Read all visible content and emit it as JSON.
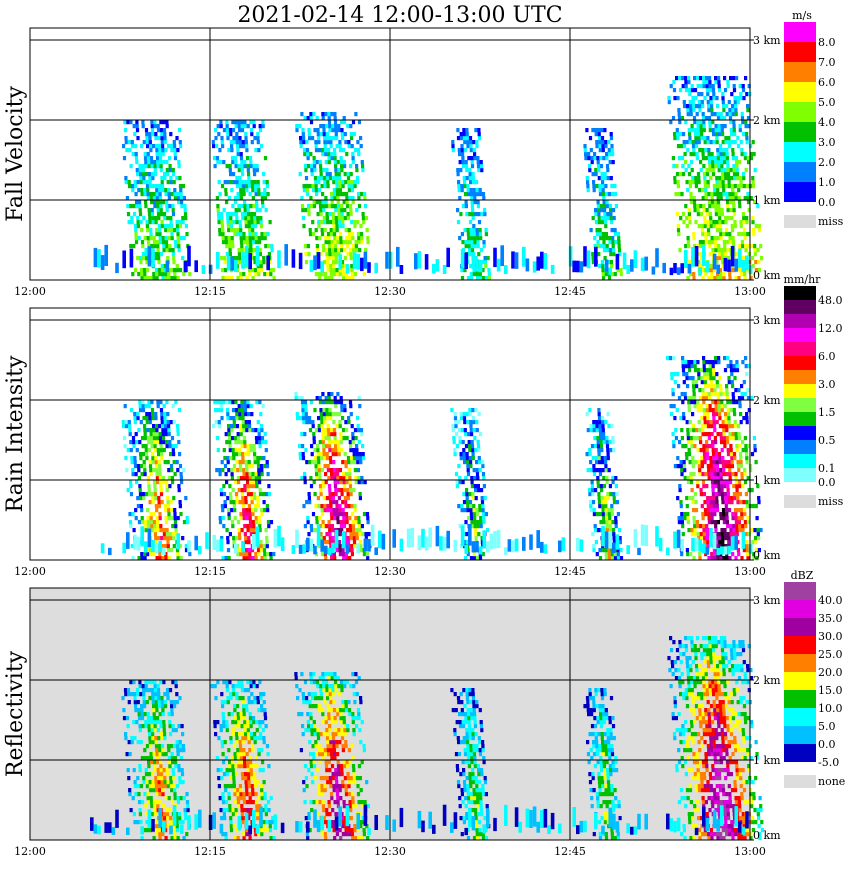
{
  "title": "2021-02-14   12:00-13:00 UTC",
  "chart_data": {
    "type": "heatmap",
    "title": "2021-02-14   12:00-13:00 UTC",
    "x_ticks": [
      "12:00",
      "12:15",
      "12:30",
      "12:45",
      "13:00"
    ],
    "xlim_minutes": [
      0,
      60
    ],
    "y_ticks": [
      "0 km",
      "1 km",
      "2 km",
      "3 km"
    ],
    "ylim_km": [
      0,
      3.15
    ],
    "cells": [
      {
        "t_start": 7.5,
        "t_end": 12.5,
        "top_km": 2.0,
        "peak": 0.6
      },
      {
        "t_start": 15.0,
        "t_end": 19.5,
        "top_km": 2.0,
        "peak": 0.7
      },
      {
        "t_start": 22.0,
        "t_end": 27.5,
        "top_km": 2.1,
        "peak": 0.85
      },
      {
        "t_start": 35.0,
        "t_end": 37.5,
        "top_km": 1.9,
        "peak": 0.4
      },
      {
        "t_start": 46.0,
        "t_end": 48.5,
        "top_km": 1.9,
        "peak": 0.45
      },
      {
        "t_start": 53.0,
        "t_end": 60.0,
        "top_km": 2.5,
        "peak": 0.95
      }
    ],
    "panels": [
      {
        "label": "Fall Velocity",
        "unit": "m/s",
        "background": "#ffffff",
        "colors": [
          "#0000ff",
          "#0080ff",
          "#00ffff",
          "#00c000",
          "#80ff00",
          "#ffff00",
          "#ff8000",
          "#ff0000",
          "#ff00ff"
        ],
        "levels": [
          "0.0",
          "1.0",
          "2.0",
          "3.0",
          "4.0",
          "5.0",
          "6.0",
          "7.0",
          "8.0"
        ],
        "missing_label": "miss",
        "missing_color": "#dddddd"
      },
      {
        "label": "Rain Intensity",
        "unit": "mm/hr",
        "background": "#ffffff",
        "colors": [
          "#80ffff",
          "#00ffff",
          "#0080ff",
          "#0000ff",
          "#00c000",
          "#80ff40",
          "#ffff00",
          "#ff8000",
          "#ff0000",
          "#ff0080",
          "#ff00ff",
          "#b000b0",
          "#600060",
          "#000000"
        ],
        "levels": [
          "0.0",
          "0.1",
          "0.5",
          "1.5",
          "3.0",
          "6.0",
          "12.0",
          "48.0"
        ],
        "missing_label": "miss",
        "missing_color": "#dddddd"
      },
      {
        "label": "Reflectivity",
        "unit": "dBZ",
        "background": "#dddddd",
        "colors": [
          "#0000c0",
          "#00c0ff",
          "#00ffff",
          "#00c000",
          "#ffff00",
          "#ff8000",
          "#ff0000",
          "#a000a0",
          "#e000e0",
          "#a040a0"
        ],
        "levels": [
          "-5.0",
          "0.0",
          "5.0",
          "10.0",
          "15.0",
          "20.0",
          "25.0",
          "30.0",
          "35.0",
          "40.0"
        ],
        "missing_label": "none",
        "missing_color": "#dddddd"
      }
    ]
  }
}
